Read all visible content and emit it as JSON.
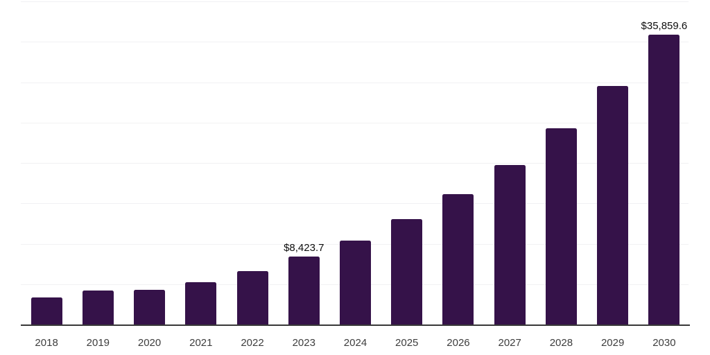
{
  "chart_data": {
    "type": "bar",
    "title": "",
    "xlabel": "",
    "ylabel": "",
    "categories": [
      "2018",
      "2019",
      "2020",
      "2021",
      "2022",
      "2023",
      "2024",
      "2025",
      "2026",
      "2027",
      "2028",
      "2029",
      "2030"
    ],
    "values": [
      3370,
      4200,
      4250,
      5240,
      6610,
      8423.7,
      10390,
      13050,
      16140,
      19740,
      24290,
      29530,
      35859.6
    ],
    "data_labels": {
      "2023": "$8,423.7",
      "2030": "$35,859.6"
    },
    "ylim": [
      0,
      40000
    ],
    "gridline_step": 5000,
    "grid": true,
    "legend": "none",
    "bar_color": "#351249",
    "axis_color": "#383838",
    "gridline_color": "#f1f1f3",
    "data_label_color": "#0d0d0d",
    "tick_label_color": "#3d3d3d"
  }
}
